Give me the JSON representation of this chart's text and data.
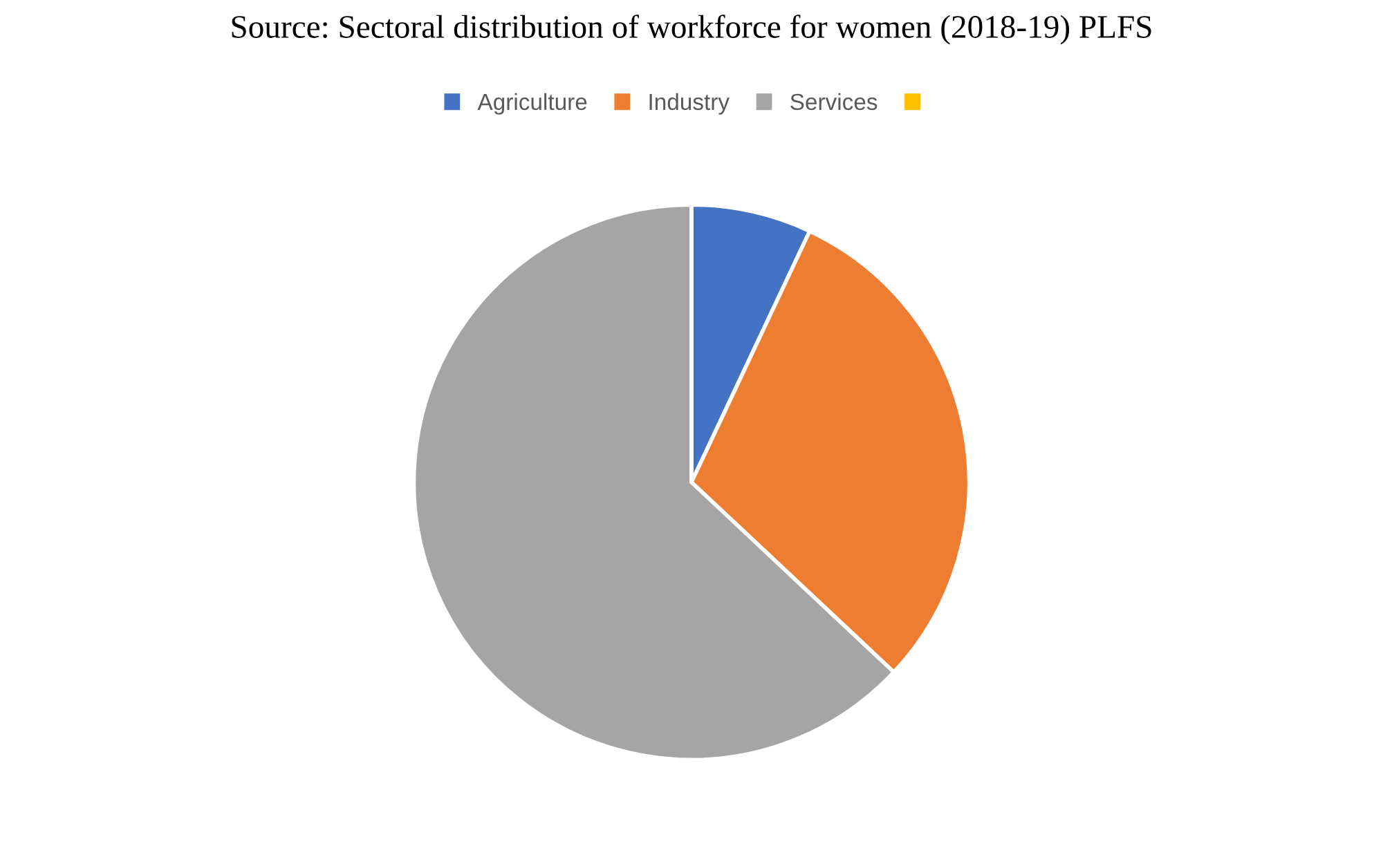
{
  "chart_data": {
    "type": "pie",
    "title": "Source: Sectoral distribution of workforce for women (2018-19) PLFS",
    "categories": [
      "Agriculture",
      "Industry",
      "Services",
      null
    ],
    "values": [
      7,
      30,
      63,
      0
    ],
    "colors": [
      "#4472c4",
      "#ed7d31",
      "#a5a5a5",
      "#ffc000"
    ],
    "legend": "top"
  }
}
